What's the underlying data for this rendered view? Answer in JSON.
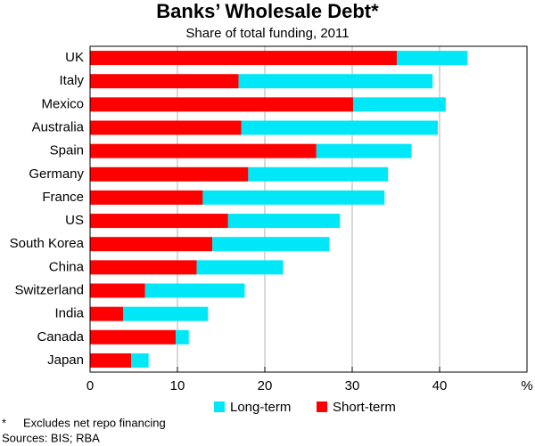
{
  "chart_data": {
    "type": "stacked-barh",
    "title": "Banks’ Wholesale Debt*",
    "subtitle": "Share of total funding, 2011",
    "categories": [
      "UK",
      "Italy",
      "Mexico",
      "Australia",
      "Spain",
      "Germany",
      "France",
      "US",
      "South Korea",
      "China",
      "Switzerland",
      "India",
      "Canada",
      "Japan"
    ],
    "series": [
      {
        "name": "Short-term",
        "color": "#ff0000",
        "values": [
          35.1,
          17.0,
          30.1,
          17.3,
          25.9,
          18.1,
          12.9,
          15.8,
          14.0,
          12.2,
          6.3,
          3.8,
          9.8,
          4.7
        ]
      },
      {
        "name": "Long-term",
        "color": "#00e8f8",
        "values": [
          8.1,
          22.2,
          10.6,
          22.5,
          10.9,
          16.0,
          20.8,
          12.8,
          13.4,
          9.9,
          11.4,
          9.7,
          1.5,
          2.0
        ]
      }
    ],
    "xlim": [
      0,
      50
    ],
    "xticks": [
      0,
      10,
      20,
      30,
      40,
      {
        "value": 50,
        "label": "%"
      }
    ],
    "grid": true,
    "footnote": "Excludes net repo financing",
    "footnote_marker": "*",
    "source": "Sources: BIS; RBA"
  }
}
